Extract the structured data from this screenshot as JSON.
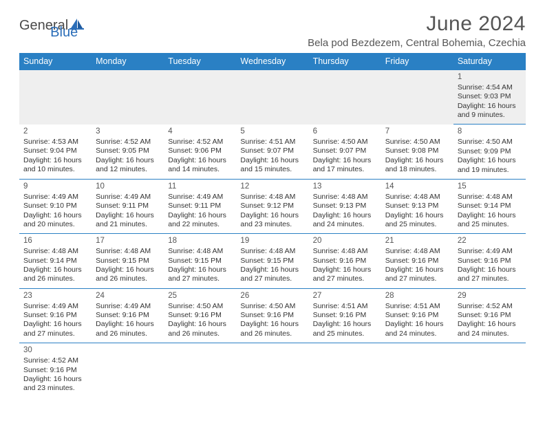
{
  "logo": {
    "text1": "General",
    "text2": "Blue"
  },
  "title": "June 2024",
  "location": "Bela pod Bezdezem, Central Bohemia, Czechia",
  "colors": {
    "header_bg": "#2a80c4",
    "header_text": "#ffffff",
    "grid_line": "#2a80c4",
    "empty_row_bg": "#efefef",
    "body_text": "#333333",
    "title_text": "#555555",
    "logo_gray": "#4a4a4a",
    "logo_blue": "#2a6db8"
  },
  "day_headers": [
    "Sunday",
    "Monday",
    "Tuesday",
    "Wednesday",
    "Thursday",
    "Friday",
    "Saturday"
  ],
  "weeks": [
    [
      null,
      null,
      null,
      null,
      null,
      null,
      {
        "n": "1",
        "sr": "Sunrise: 4:54 AM",
        "ss": "Sunset: 9:03 PM",
        "d1": "Daylight: 16 hours",
        "d2": "and 9 minutes."
      }
    ],
    [
      {
        "n": "2",
        "sr": "Sunrise: 4:53 AM",
        "ss": "Sunset: 9:04 PM",
        "d1": "Daylight: 16 hours",
        "d2": "and 10 minutes."
      },
      {
        "n": "3",
        "sr": "Sunrise: 4:52 AM",
        "ss": "Sunset: 9:05 PM",
        "d1": "Daylight: 16 hours",
        "d2": "and 12 minutes."
      },
      {
        "n": "4",
        "sr": "Sunrise: 4:52 AM",
        "ss": "Sunset: 9:06 PM",
        "d1": "Daylight: 16 hours",
        "d2": "and 14 minutes."
      },
      {
        "n": "5",
        "sr": "Sunrise: 4:51 AM",
        "ss": "Sunset: 9:07 PM",
        "d1": "Daylight: 16 hours",
        "d2": "and 15 minutes."
      },
      {
        "n": "6",
        "sr": "Sunrise: 4:50 AM",
        "ss": "Sunset: 9:07 PM",
        "d1": "Daylight: 16 hours",
        "d2": "and 17 minutes."
      },
      {
        "n": "7",
        "sr": "Sunrise: 4:50 AM",
        "ss": "Sunset: 9:08 PM",
        "d1": "Daylight: 16 hours",
        "d2": "and 18 minutes."
      },
      {
        "n": "8",
        "sr": "Sunrise: 4:50 AM",
        "ss": "Sunset: 9:09 PM",
        "d1": "Daylight: 16 hours",
        "d2": "and 19 minutes."
      }
    ],
    [
      {
        "n": "9",
        "sr": "Sunrise: 4:49 AM",
        "ss": "Sunset: 9:10 PM",
        "d1": "Daylight: 16 hours",
        "d2": "and 20 minutes."
      },
      {
        "n": "10",
        "sr": "Sunrise: 4:49 AM",
        "ss": "Sunset: 9:11 PM",
        "d1": "Daylight: 16 hours",
        "d2": "and 21 minutes."
      },
      {
        "n": "11",
        "sr": "Sunrise: 4:49 AM",
        "ss": "Sunset: 9:11 PM",
        "d1": "Daylight: 16 hours",
        "d2": "and 22 minutes."
      },
      {
        "n": "12",
        "sr": "Sunrise: 4:48 AM",
        "ss": "Sunset: 9:12 PM",
        "d1": "Daylight: 16 hours",
        "d2": "and 23 minutes."
      },
      {
        "n": "13",
        "sr": "Sunrise: 4:48 AM",
        "ss": "Sunset: 9:13 PM",
        "d1": "Daylight: 16 hours",
        "d2": "and 24 minutes."
      },
      {
        "n": "14",
        "sr": "Sunrise: 4:48 AM",
        "ss": "Sunset: 9:13 PM",
        "d1": "Daylight: 16 hours",
        "d2": "and 25 minutes."
      },
      {
        "n": "15",
        "sr": "Sunrise: 4:48 AM",
        "ss": "Sunset: 9:14 PM",
        "d1": "Daylight: 16 hours",
        "d2": "and 25 minutes."
      }
    ],
    [
      {
        "n": "16",
        "sr": "Sunrise: 4:48 AM",
        "ss": "Sunset: 9:14 PM",
        "d1": "Daylight: 16 hours",
        "d2": "and 26 minutes."
      },
      {
        "n": "17",
        "sr": "Sunrise: 4:48 AM",
        "ss": "Sunset: 9:15 PM",
        "d1": "Daylight: 16 hours",
        "d2": "and 26 minutes."
      },
      {
        "n": "18",
        "sr": "Sunrise: 4:48 AM",
        "ss": "Sunset: 9:15 PM",
        "d1": "Daylight: 16 hours",
        "d2": "and 27 minutes."
      },
      {
        "n": "19",
        "sr": "Sunrise: 4:48 AM",
        "ss": "Sunset: 9:15 PM",
        "d1": "Daylight: 16 hours",
        "d2": "and 27 minutes."
      },
      {
        "n": "20",
        "sr": "Sunrise: 4:48 AM",
        "ss": "Sunset: 9:16 PM",
        "d1": "Daylight: 16 hours",
        "d2": "and 27 minutes."
      },
      {
        "n": "21",
        "sr": "Sunrise: 4:48 AM",
        "ss": "Sunset: 9:16 PM",
        "d1": "Daylight: 16 hours",
        "d2": "and 27 minutes."
      },
      {
        "n": "22",
        "sr": "Sunrise: 4:49 AM",
        "ss": "Sunset: 9:16 PM",
        "d1": "Daylight: 16 hours",
        "d2": "and 27 minutes."
      }
    ],
    [
      {
        "n": "23",
        "sr": "Sunrise: 4:49 AM",
        "ss": "Sunset: 9:16 PM",
        "d1": "Daylight: 16 hours",
        "d2": "and 27 minutes."
      },
      {
        "n": "24",
        "sr": "Sunrise: 4:49 AM",
        "ss": "Sunset: 9:16 PM",
        "d1": "Daylight: 16 hours",
        "d2": "and 26 minutes."
      },
      {
        "n": "25",
        "sr": "Sunrise: 4:50 AM",
        "ss": "Sunset: 9:16 PM",
        "d1": "Daylight: 16 hours",
        "d2": "and 26 minutes."
      },
      {
        "n": "26",
        "sr": "Sunrise: 4:50 AM",
        "ss": "Sunset: 9:16 PM",
        "d1": "Daylight: 16 hours",
        "d2": "and 26 minutes."
      },
      {
        "n": "27",
        "sr": "Sunrise: 4:51 AM",
        "ss": "Sunset: 9:16 PM",
        "d1": "Daylight: 16 hours",
        "d2": "and 25 minutes."
      },
      {
        "n": "28",
        "sr": "Sunrise: 4:51 AM",
        "ss": "Sunset: 9:16 PM",
        "d1": "Daylight: 16 hours",
        "d2": "and 24 minutes."
      },
      {
        "n": "29",
        "sr": "Sunrise: 4:52 AM",
        "ss": "Sunset: 9:16 PM",
        "d1": "Daylight: 16 hours",
        "d2": "and 24 minutes."
      }
    ],
    [
      {
        "n": "30",
        "sr": "Sunrise: 4:52 AM",
        "ss": "Sunset: 9:16 PM",
        "d1": "Daylight: 16 hours",
        "d2": "and 23 minutes."
      },
      null,
      null,
      null,
      null,
      null,
      null
    ]
  ]
}
